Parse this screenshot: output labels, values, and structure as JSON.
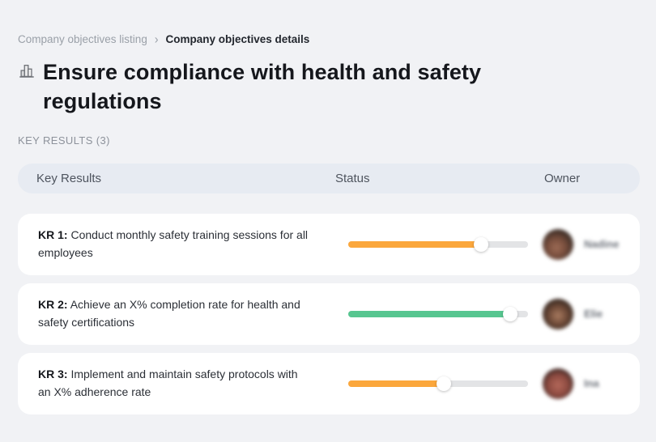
{
  "breadcrumb": {
    "items": [
      {
        "label": "Company objectives listing"
      },
      {
        "label": "Company objectives details"
      }
    ],
    "separator": "›"
  },
  "objective": {
    "icon": "buildings-icon",
    "title": "Ensure compliance with health and safety regulations"
  },
  "section_label": "KEY RESULTS (3)",
  "table": {
    "columns": [
      "Key Results",
      "Status",
      "Owner"
    ],
    "rows": [
      {
        "kr_label": "KR 1:",
        "kr_text": "Conduct monthly safety training sessions for all employees",
        "progress_pct": 74,
        "progress_color": "#FBA73C",
        "owner_name": "Nadine"
      },
      {
        "kr_label": "KR 2:",
        "kr_text": "Achieve an X% completion rate for health and safety certifications",
        "progress_pct": 90,
        "progress_color": "#57C690",
        "owner_name": "Elie"
      },
      {
        "kr_label": "KR 3:",
        "kr_text": "Implement and maintain safety protocols with an X% adherence rate",
        "progress_pct": 53,
        "progress_color": "#FBA73C",
        "owner_name": "Ina"
      }
    ]
  },
  "colors": {
    "page_bg": "#F1F2F5",
    "header_bg": "#E7EBF2",
    "card_bg": "#FFFFFF",
    "track": "#E3E4E6",
    "orange": "#FBA73C",
    "green": "#57C690"
  }
}
